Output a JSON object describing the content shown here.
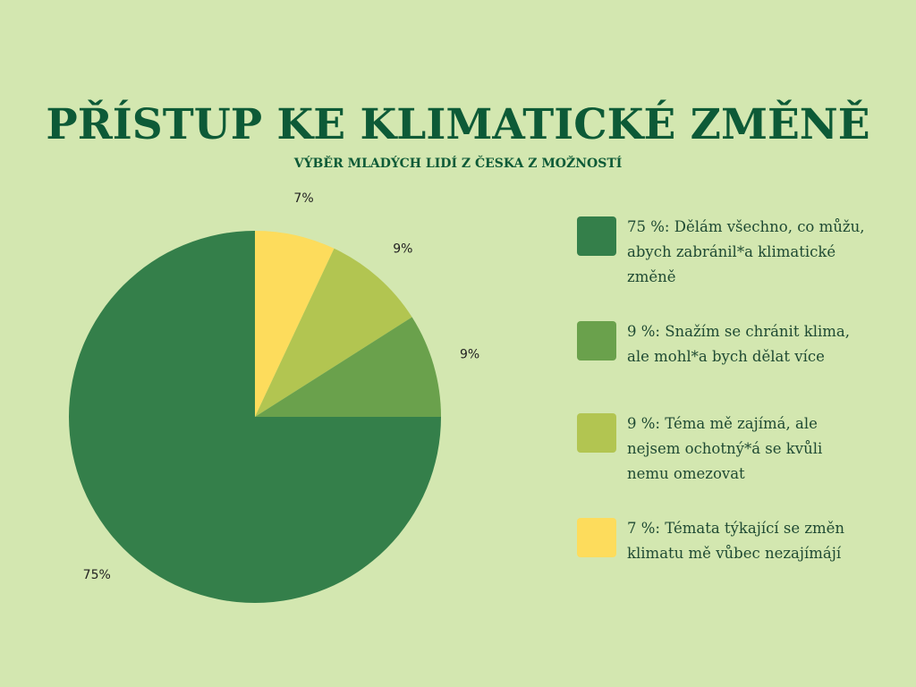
{
  "title": "PŘÍSTUP KE KLIMATICKÉ ZMĚNĚ",
  "subtitle": "VÝBĚR MLADÝCH LIDÍ Z ČESKA Z MOŽNOSTÍ",
  "chart_data": {
    "type": "pie",
    "title": "PŘÍSTUP KE KLIMATICKÉ ZMĚNĚ",
    "subtitle": "VÝBĚR MLADÝCH LIDÍ Z ČESKA Z MOŽNOSTÍ",
    "start": "12 o'clock",
    "direction": "clockwise",
    "legend_position": "right",
    "slices": [
      {
        "label": "7 %: Témata týkající se změn klimatu mě vůbec nezajímájí",
        "value": 7,
        "value_label": "7%",
        "color": "#fddc5c"
      },
      {
        "label": "9 %: Téma mě zajímá, ale nejsem ochotný*á se kvůli nemu omezovat",
        "value": 9,
        "value_label": "9%",
        "color": "#b2c551"
      },
      {
        "label": "9 %: Snažím se chránit klima, ale mohl*a bych dělat více",
        "value": 9,
        "value_label": "9%",
        "color": "#6aa14c"
      },
      {
        "label": "75 %: Dělám všechno, co můžu, abych zabránil*a klimatické změně",
        "value": 75,
        "value_label": "75%",
        "color": "#347f4a"
      }
    ]
  },
  "legend": [
    {
      "text": "75 %: Dělám všechno, co můžu, abych zabránil*a klimatické změně",
      "color": "#347f4a"
    },
    {
      "text": "9 %: Snažím se chránit klima, ale mohl*a bych dělat více",
      "color": "#6aa14c"
    },
    {
      "text": "9 %: Téma mě zajímá, ale nejsem ochotný*á se kvůli nemu omezovat",
      "color": "#b2c551"
    },
    {
      "text": "7 %: Témata týkající se změn klimatu mě vůbec nezajímájí",
      "color": "#fddc5c"
    }
  ]
}
